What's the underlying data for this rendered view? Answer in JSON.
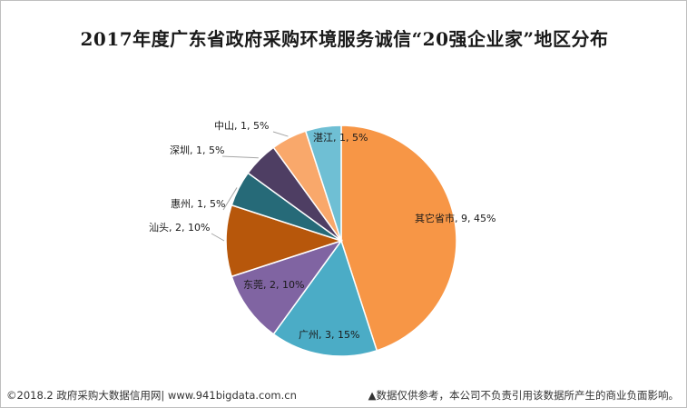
{
  "title": "2017年度广东省政府采购环境服务诚信“20强企业家”地区分布",
  "footer": {
    "left": "©2018.2 政府采购大数据信用网| www.941bigdata.com.cn",
    "right": "▲数据仅供参考，本公司不负责引用该数据所产生的商业负面影响。"
  },
  "chart_data": {
    "type": "pie",
    "title": "2017年度广东省政府采购环境服务诚信“20强企业家”地区分布",
    "total": 20,
    "slices": [
      {
        "name": "其它省市",
        "value": 9,
        "percent": "45%",
        "label": "其它省市, 9, 45%",
        "color": "#F79646"
      },
      {
        "name": "广州",
        "value": 3,
        "percent": "15%",
        "label": "广州, 3, 15%",
        "color": "#4BACC6"
      },
      {
        "name": "东莞",
        "value": 2,
        "percent": "10%",
        "label": "东莞, 2, 10%",
        "color": "#8064A2"
      },
      {
        "name": "汕头",
        "value": 2,
        "percent": "10%",
        "label": "汕头, 2, 10%",
        "color": "#B7570B"
      },
      {
        "name": "惠州",
        "value": 1,
        "percent": "5%",
        "label": "惠州, 1, 5%",
        "color": "#266A78"
      },
      {
        "name": "深圳",
        "value": 1,
        "percent": "5%",
        "label": "深圳, 1, 5%",
        "color": "#4E3E63"
      },
      {
        "name": "中山",
        "value": 1,
        "percent": "5%",
        "label": "中山, 1, 5%",
        "color": "#F9A86B"
      },
      {
        "name": "湛江",
        "value": 1,
        "percent": "5%",
        "label": "湛江, 1, 5%",
        "color": "#6FBFD4"
      }
    ]
  }
}
